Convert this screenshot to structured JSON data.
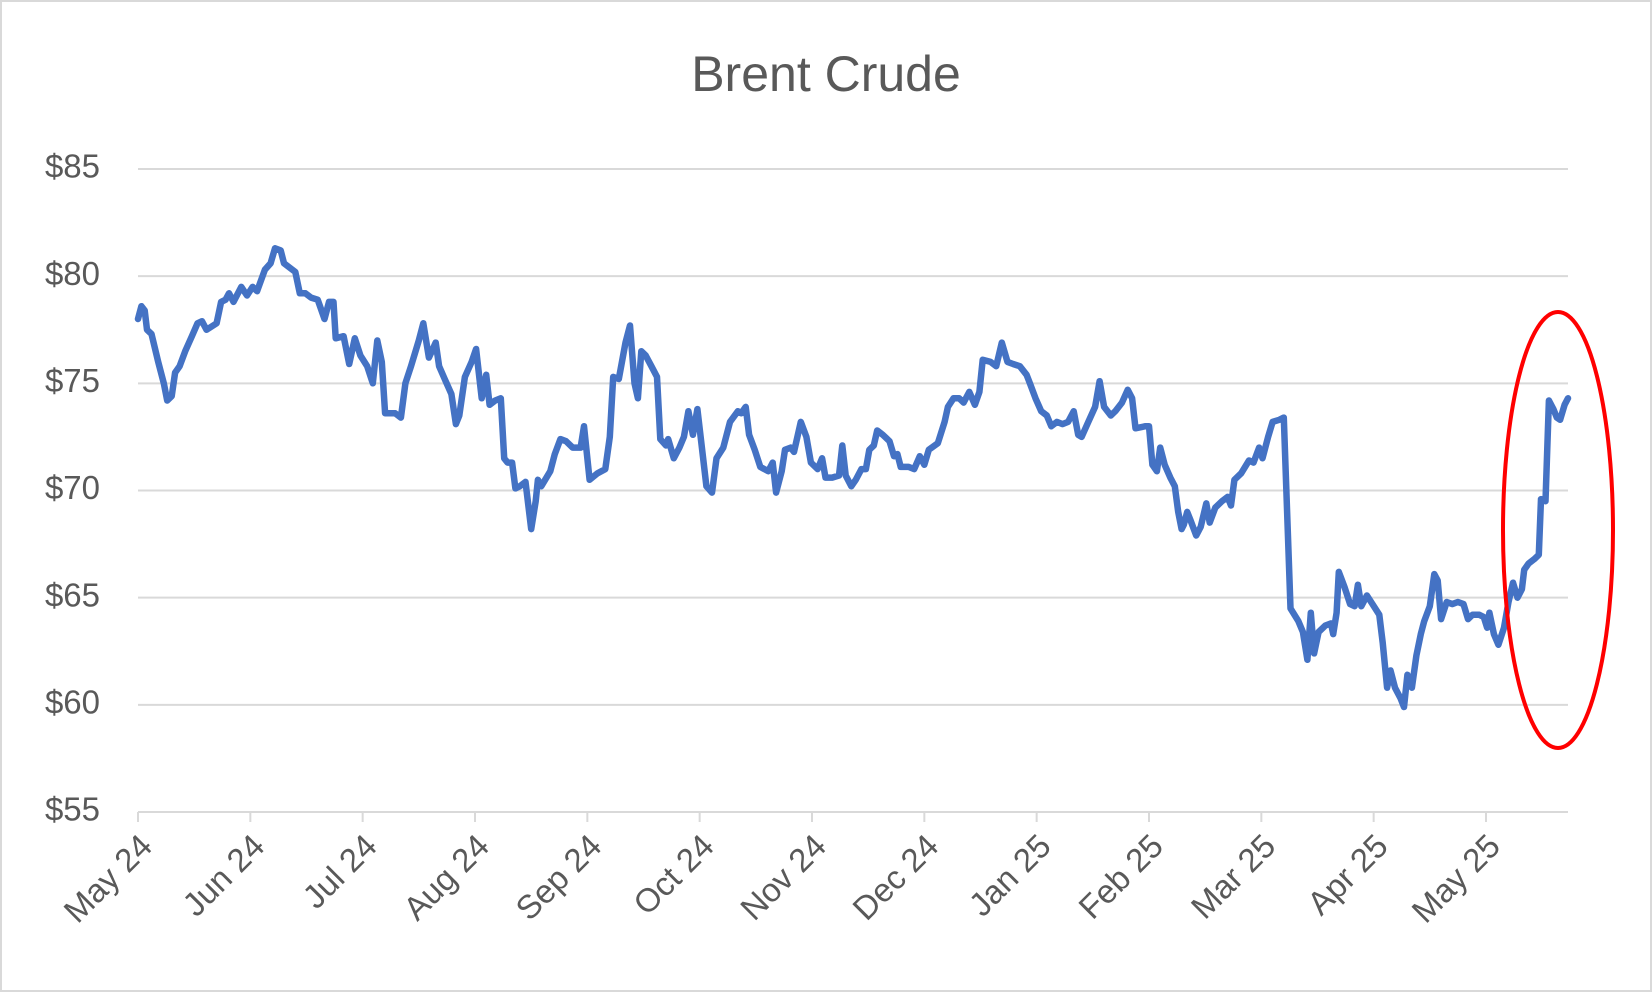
{
  "chart_data": {
    "type": "line",
    "title": "Brent Crude",
    "x": [
      0,
      0.03,
      0.06,
      0.08,
      0.12,
      0.18,
      0.23,
      0.26,
      0.3,
      0.33,
      0.37,
      0.42,
      0.48,
      0.53,
      0.57,
      0.61,
      0.7,
      0.74,
      0.78,
      0.81,
      0.85,
      0.92,
      0.97,
      1.02,
      1.06,
      1.13,
      1.18,
      1.22,
      1.27,
      1.3,
      1.4,
      1.44,
      1.49,
      1.54,
      1.6,
      1.66,
      1.7,
      1.74,
      1.76,
      1.83,
      1.88,
      1.93,
      1.98,
      2.04,
      2.09,
      2.13,
      2.17,
      2.2,
      2.29,
      2.34,
      2.38,
      2.43,
      2.5,
      2.54,
      2.59,
      2.65,
      2.68,
      2.73,
      2.79,
      2.83,
      2.86,
      2.91,
      2.97,
      3.01,
      3.06,
      3.1,
      3.13,
      3.18,
      3.23,
      3.26,
      3.29,
      3.33,
      3.36,
      3.4,
      3.45,
      3.5,
      3.54,
      3.56,
      3.59,
      3.67,
      3.71,
      3.76,
      3.81,
      3.87,
      3.94,
      3.97,
      4.02,
      4.09,
      4.16,
      4.2,
      4.23,
      4.28,
      4.34,
      4.38,
      4.42,
      4.45,
      4.48,
      4.52,
      4.57,
      4.62,
      4.65,
      4.7,
      4.72,
      4.77,
      4.82,
      4.86,
      4.9,
      4.94,
      4.98,
      5.06,
      5.11,
      5.15,
      5.21,
      5.27,
      5.34,
      5.37,
      5.41,
      5.44,
      5.49,
      5.54,
      5.61,
      5.65,
      5.68,
      5.73,
      5.76,
      5.81,
      5.84,
      5.9,
      5.95,
      5.99,
      6.05,
      6.09,
      6.12,
      6.18,
      6.24,
      6.27,
      6.3,
      6.35,
      6.39,
      6.44,
      6.48,
      6.51,
      6.55,
      6.58,
      6.63,
      6.69,
      6.73,
      6.76,
      6.79,
      6.86,
      6.91,
      6.96,
      7.0,
      7.04,
      7.12,
      7.18,
      7.21,
      7.26,
      7.31,
      7.35,
      7.4,
      7.45,
      7.49,
      7.52,
      7.59,
      7.64,
      7.69,
      7.74,
      7.79,
      7.85,
      7.91,
      7.94,
      7.99,
      8.04,
      8.09,
      8.13,
      8.18,
      8.23,
      8.28,
      8.33,
      8.37,
      8.4,
      8.46,
      8.52,
      8.56,
      8.6,
      8.66,
      8.7,
      8.76,
      8.81,
      8.85,
      8.88,
      8.97,
      9.0,
      9.03,
      9.07,
      9.1,
      9.14,
      9.19,
      9.23,
      9.26,
      9.29,
      9.31,
      9.34,
      9.37,
      9.42,
      9.46,
      9.51,
      9.54,
      9.59,
      9.65,
      9.7,
      9.73,
      9.76,
      9.82,
      9.89,
      9.93,
      9.98,
      10.01,
      10.06,
      10.1,
      10.16,
      10.2,
      10.26,
      10.33,
      10.37,
      10.41,
      10.44,
      10.47,
      10.51,
      10.57,
      10.62,
      10.64,
      10.67,
      10.69,
      10.74,
      10.79,
      10.83,
      10.86,
      10.89,
      10.94,
      10.99,
      11.05,
      11.08,
      11.12,
      11.15,
      11.19,
      11.24,
      11.27,
      11.3,
      11.34,
      11.38,
      11.42,
      11.45,
      11.5,
      11.54,
      11.57,
      11.6,
      11.65,
      11.7,
      11.75,
      11.8,
      11.84,
      11.88,
      11.94,
      11.98,
      12.01,
      12.03,
      12.07,
      12.11,
      12.16,
      12.2,
      12.24,
      12.28,
      12.32,
      12.34,
      12.38,
      12.43,
      12.47,
      12.49,
      12.53,
      12.56,
      12.6,
      12.63,
      12.66,
      12.7,
      12.73
    ],
    "series": [
      {
        "name": "Brent Crude",
        "color": "#4472c4",
        "values": [
          78.0,
          78.6,
          78.4,
          77.5,
          77.3,
          76.0,
          75.0,
          74.2,
          74.4,
          75.5,
          75.8,
          76.5,
          77.2,
          77.8,
          77.9,
          77.5,
          77.8,
          78.8,
          78.9,
          79.2,
          78.8,
          79.5,
          79.1,
          79.5,
          79.3,
          80.3,
          80.6,
          81.3,
          81.2,
          80.6,
          80.2,
          79.2,
          79.2,
          79.0,
          78.9,
          78.0,
          78.8,
          78.8,
          77.1,
          77.2,
          75.9,
          77.1,
          76.3,
          75.8,
          75.0,
          77.0,
          76.0,
          73.6,
          73.6,
          73.4,
          75.0,
          75.8,
          77.0,
          77.8,
          76.2,
          76.9,
          75.8,
          75.2,
          74.5,
          73.1,
          73.5,
          75.3,
          76.0,
          76.6,
          74.3,
          75.4,
          74.0,
          74.2,
          74.3,
          71.5,
          71.3,
          71.3,
          70.1,
          70.2,
          70.4,
          68.2,
          69.5,
          70.5,
          70.2,
          70.9,
          71.7,
          72.4,
          72.3,
          72.0,
          72.0,
          73.0,
          70.5,
          70.8,
          71.0,
          72.5,
          75.3,
          75.2,
          76.9,
          77.7,
          75.0,
          74.3,
          76.5,
          76.3,
          75.8,
          75.3,
          72.4,
          72.1,
          72.4,
          71.5,
          72.0,
          72.5,
          73.7,
          72.6,
          73.8,
          70.2,
          69.9,
          71.5,
          72.0,
          73.2,
          73.7,
          73.6,
          73.9,
          72.6,
          71.9,
          71.1,
          70.9,
          71.3,
          69.9,
          70.9,
          71.9,
          72.0,
          71.8,
          73.2,
          72.5,
          71.3,
          71.0,
          71.5,
          70.6,
          70.6,
          70.7,
          72.1,
          70.7,
          70.2,
          70.5,
          71.0,
          71.0,
          71.9,
          72.1,
          72.8,
          72.6,
          72.3,
          71.6,
          71.7,
          71.1,
          71.1,
          71.0,
          71.6,
          71.2,
          71.9,
          72.2,
          73.2,
          73.9,
          74.3,
          74.3,
          74.1,
          74.6,
          74.0,
          74.6,
          76.1,
          76.0,
          75.8,
          76.9,
          76.0,
          75.9,
          75.8,
          75.4,
          75.0,
          74.3,
          73.7,
          73.5,
          73.0,
          73.2,
          73.1,
          73.2,
          73.7,
          72.6,
          72.5,
          73.2,
          73.9,
          75.1,
          73.9,
          73.5,
          73.7,
          74.1,
          74.7,
          74.3,
          72.9,
          73.0,
          73.0,
          71.2,
          70.9,
          72.0,
          71.2,
          70.6,
          70.2,
          69.0,
          68.2,
          68.4,
          69.0,
          68.6,
          67.9,
          68.3,
          69.4,
          68.5,
          69.2,
          69.5,
          69.7,
          69.3,
          70.5,
          70.8,
          71.4,
          71.3,
          72.0,
          71.5,
          72.5,
          73.2,
          73.3,
          73.4,
          64.5,
          63.9,
          63.4,
          62.1,
          64.3,
          62.4,
          63.4,
          63.7,
          63.8,
          63.3,
          64.3,
          66.2,
          65.5,
          64.7,
          64.6,
          65.6,
          64.6,
          65.1,
          64.7,
          64.2,
          62.9,
          60.8,
          61.6,
          60.8,
          60.3,
          59.9,
          61.4,
          60.8,
          62.3,
          63.3,
          63.9,
          64.6,
          66.1,
          65.8,
          64.0,
          64.8,
          64.7,
          64.8,
          64.7,
          64.0,
          64.2,
          64.2,
          64.1,
          63.6,
          64.3,
          63.3,
          62.8,
          63.6,
          64.8,
          65.7,
          65.0,
          65.4,
          66.3,
          66.6,
          66.8,
          67.0,
          69.6,
          69.5,
          74.2,
          73.8,
          73.4,
          73.3,
          74.0,
          74.3
        ]
      }
    ],
    "xlim": [
      0,
      12.73
    ],
    "xticks": [
      {
        "value": 0,
        "label": "May 24"
      },
      {
        "value": 1,
        "label": "Jun 24"
      },
      {
        "value": 2,
        "label": "Jul 24"
      },
      {
        "value": 3,
        "label": "Aug 24"
      },
      {
        "value": 4,
        "label": "Sep 24"
      },
      {
        "value": 5,
        "label": "Oct 24"
      },
      {
        "value": 6,
        "label": "Nov 24"
      },
      {
        "value": 7,
        "label": "Dec 24"
      },
      {
        "value": 8,
        "label": "Jan 25"
      },
      {
        "value": 9,
        "label": "Feb 25"
      },
      {
        "value": 10,
        "label": "Mar 25"
      },
      {
        "value": 11,
        "label": "Apr 25"
      },
      {
        "value": 12,
        "label": "May 25"
      }
    ],
    "ylim": [
      55,
      85
    ],
    "yticks": [
      {
        "value": 55,
        "label": "$55"
      },
      {
        "value": 60,
        "label": "$60"
      },
      {
        "value": 65,
        "label": "$65"
      },
      {
        "value": 70,
        "label": "$70"
      },
      {
        "value": 75,
        "label": "$75"
      },
      {
        "value": 80,
        "label": "$80"
      },
      {
        "value": 85,
        "label": "$85"
      }
    ],
    "grid": true
  }
}
